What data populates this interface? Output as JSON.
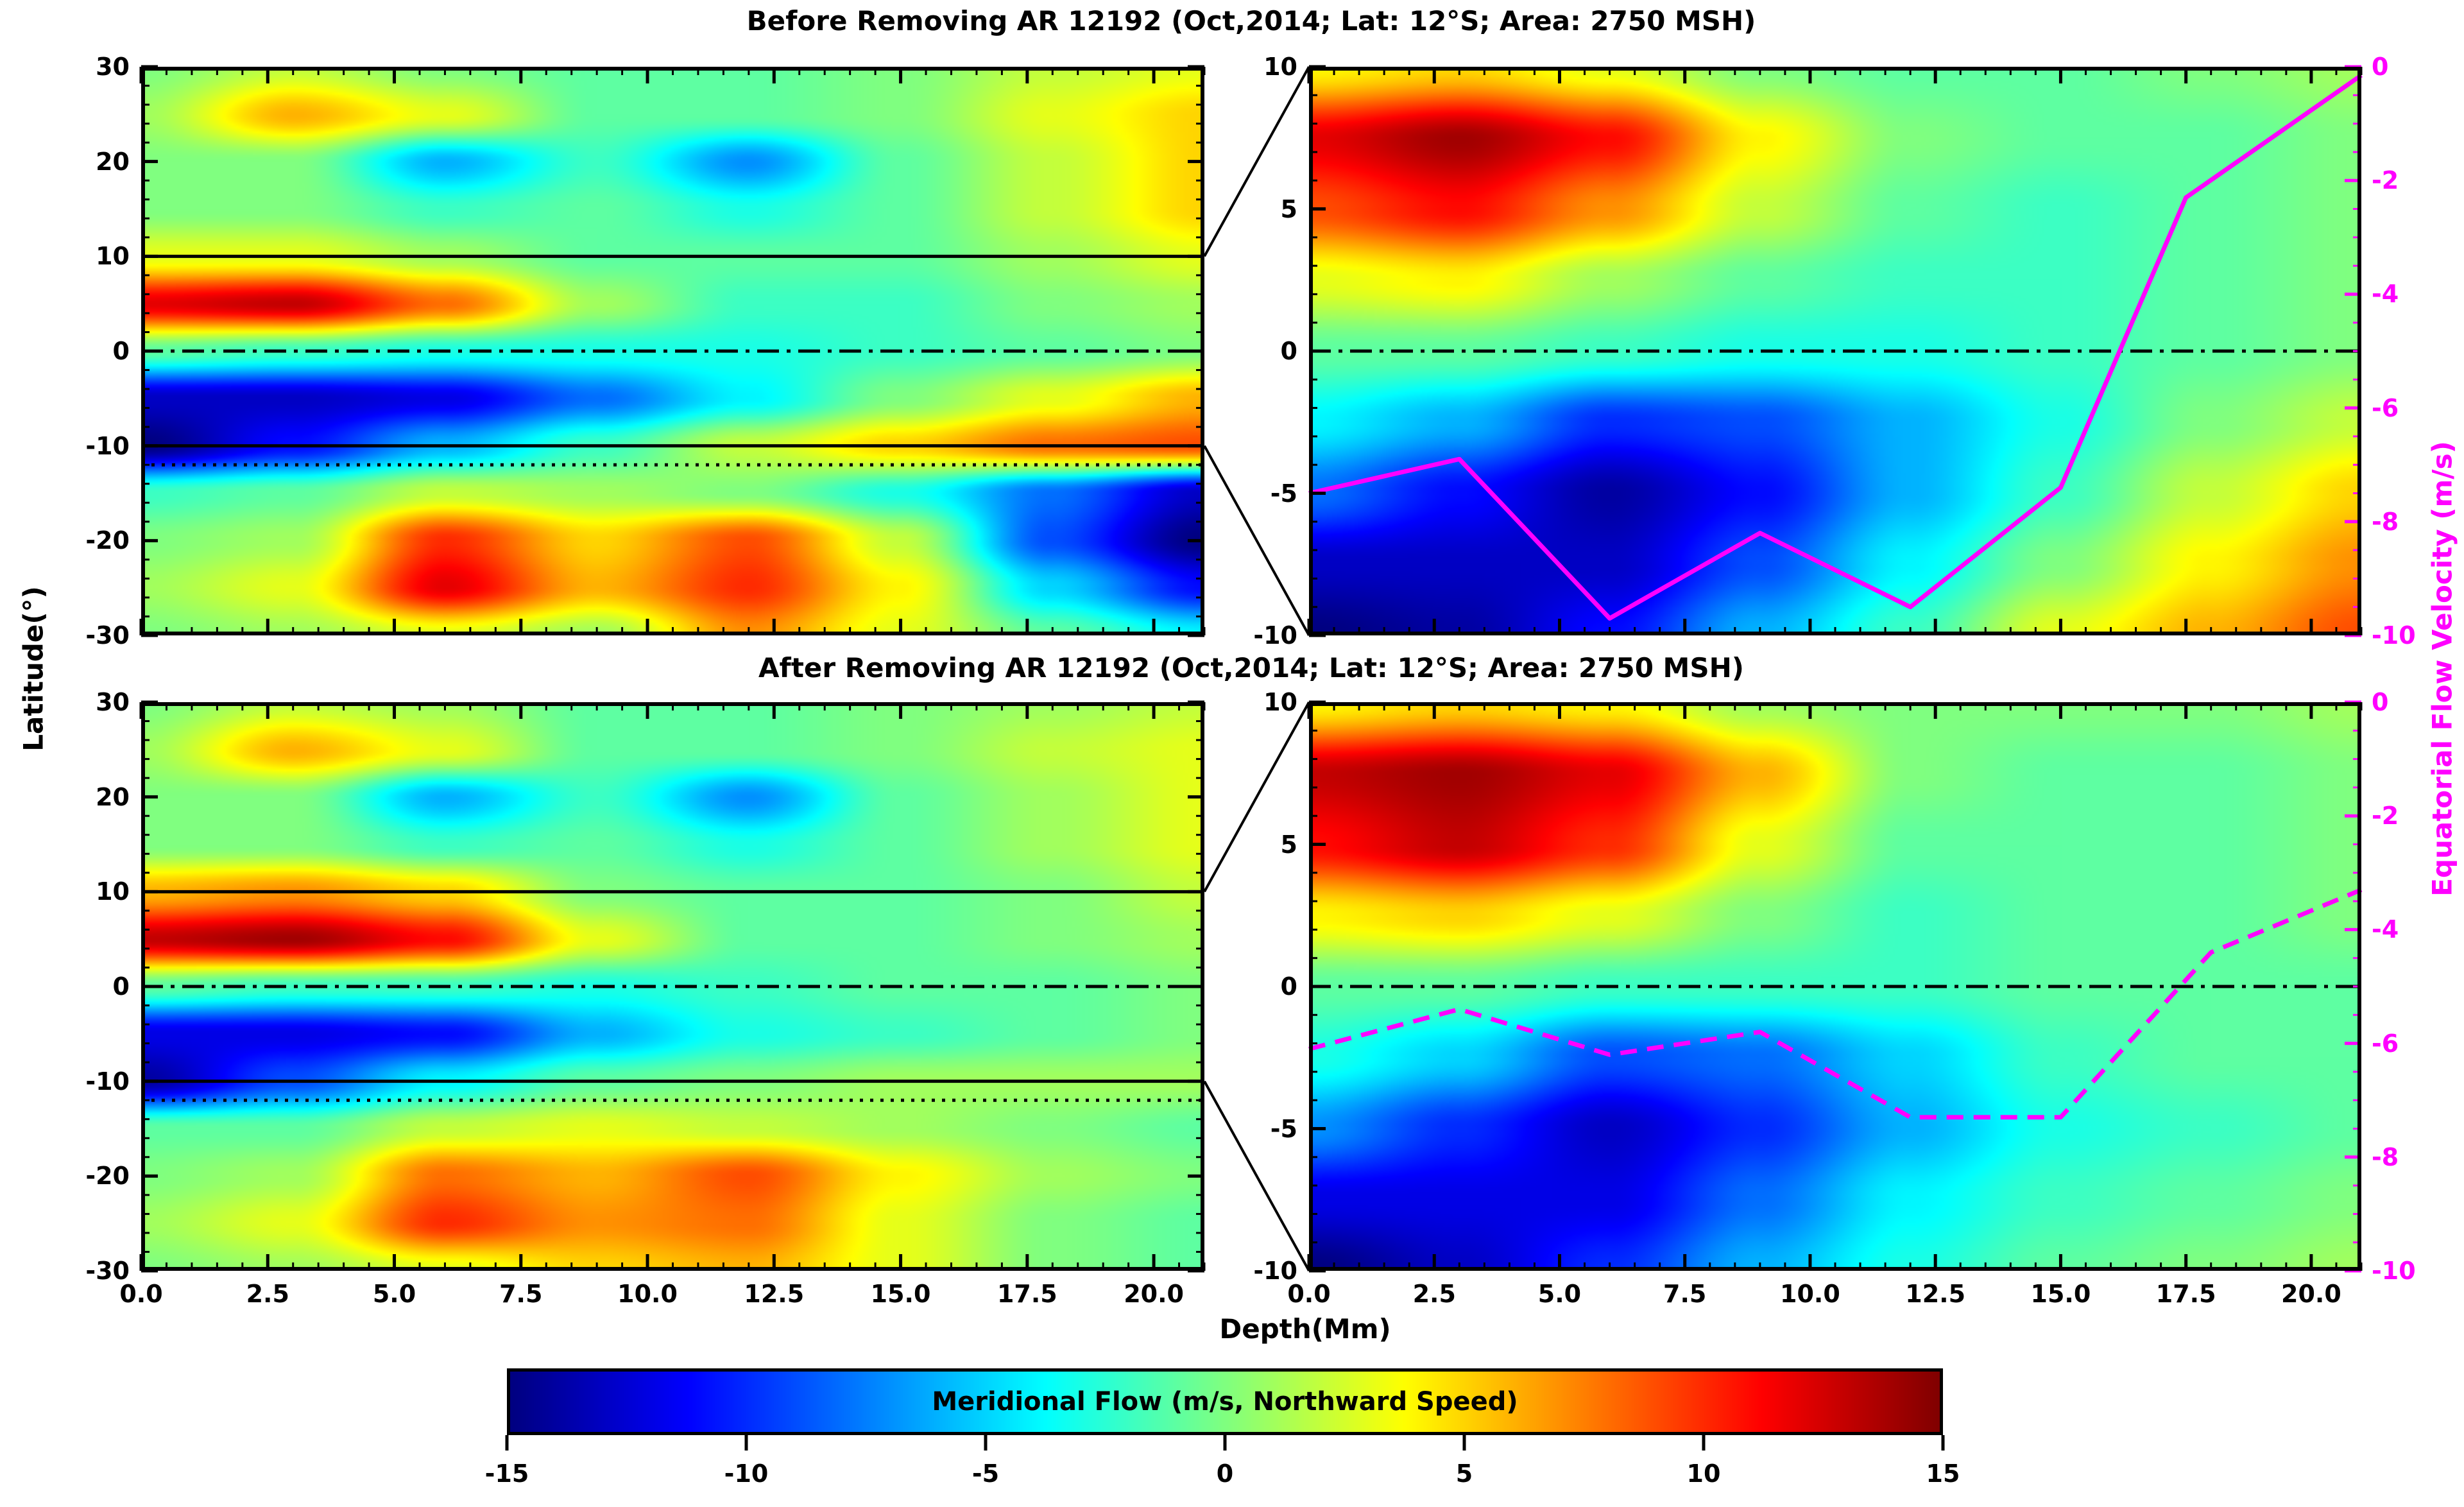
{
  "titles": {
    "before": "Before Removing AR 12192 (Oct,2014; Lat: 12°S; Area: 2750 MSH)",
    "after": "After Removing AR 12192 (Oct,2014; Lat: 12°S; Area: 2750 MSH)"
  },
  "axis_labels": {
    "y_left": "Latitude(°)",
    "x": "Depth(Mm)",
    "y_right": "Equatorial Flow Velocity (m/s)"
  },
  "colorbar": {
    "label": "Meridional Flow (m/s, Northward Speed)",
    "tick_labels": [
      "-15",
      "-10",
      "-5",
      "0",
      "5",
      "10",
      "15"
    ],
    "tick_values": [
      -15,
      -10,
      -5,
      0,
      5,
      10,
      15
    ],
    "range": [
      -15,
      15
    ],
    "colormap": "jet"
  },
  "colors": {
    "magenta": "#ff00ff",
    "frame": "#000000",
    "background": "#ffffff"
  },
  "axes": {
    "x": {
      "range": [
        0,
        21
      ],
      "major": [
        0,
        2.5,
        5,
        7.5,
        10,
        12.5,
        15,
        17.5,
        20
      ],
      "labels": [
        "0.0",
        "2.5",
        "5.0",
        "7.5",
        "10.0",
        "12.5",
        "15.0",
        "17.5",
        "20.0"
      ],
      "minor_step": 0.5
    },
    "lat_full": {
      "range": [
        -30,
        30
      ],
      "major": [
        30,
        20,
        10,
        0,
        -10,
        -20,
        -30
      ],
      "labels": [
        "30",
        "20",
        "10",
        "0",
        "-10",
        "-20",
        "-30"
      ],
      "minor_step": 2
    },
    "lat_zoom": {
      "range": [
        -10,
        10
      ],
      "major": [
        10,
        5,
        0,
        -5,
        -10
      ],
      "labels": [
        "10",
        "5",
        "0",
        "-5",
        "-10"
      ],
      "minor_step": 1
    },
    "vel_right": {
      "range": [
        -10,
        0
      ],
      "major": [
        0,
        -2,
        -4,
        -6,
        -8,
        -10
      ],
      "labels": [
        "0",
        "-2",
        "-4",
        "-6",
        "-8",
        "-10"
      ],
      "minor_step": 0.5
    }
  },
  "chart_data": [
    {
      "id": "before_full",
      "type": "heatmap",
      "panel": "top-left",
      "title": "Before Removing AR 12192 (Oct,2014; Lat: 12°S; Area: 2750 MSH)",
      "colormap": "jet",
      "value_range": [
        -15,
        15
      ],
      "x_depth_Mm": [
        0,
        3,
        6,
        9,
        12,
        15,
        18,
        21
      ],
      "y_latitude_deg": [
        30,
        25,
        20,
        15,
        10,
        5,
        0,
        -5,
        -10,
        -15,
        -20,
        -25,
        -30
      ],
      "values_m_per_s": [
        [
          0,
          2,
          0,
          -1,
          -1,
          0,
          2,
          3
        ],
        [
          1,
          6,
          3,
          -1,
          -1,
          0,
          3,
          5
        ],
        [
          0,
          0,
          -6,
          -2,
          -7,
          -1,
          2,
          5
        ],
        [
          0,
          0,
          -2,
          -1,
          -3,
          -1,
          2,
          5
        ],
        [
          3,
          3,
          1,
          -1,
          -1,
          -1,
          1,
          3
        ],
        [
          12,
          13,
          8,
          1,
          -2,
          -2,
          0,
          1
        ],
        [
          -1,
          -2,
          -3,
          -3,
          -3,
          -2,
          -1,
          0
        ],
        [
          -13,
          -13,
          -12,
          -8,
          -4,
          0,
          3,
          6
        ],
        [
          -15,
          -11,
          -6,
          -2,
          2,
          5,
          8,
          9
        ],
        [
          -2,
          -1,
          2,
          1,
          0,
          -3,
          -8,
          -13
        ],
        [
          0,
          1,
          10,
          5,
          9,
          2,
          -9,
          -15
        ],
        [
          1,
          3,
          12,
          6,
          10,
          4,
          -5,
          -11
        ],
        [
          0,
          1,
          3,
          1,
          7,
          3,
          -1,
          -4
        ]
      ],
      "overlays": {
        "solid_lat": [
          10,
          -10
        ],
        "dashdot_lat": [
          0
        ],
        "dotted_lat": [
          -12
        ]
      }
    },
    {
      "id": "before_zoom",
      "type": "heatmap+line",
      "panel": "top-right",
      "colormap": "jet",
      "value_range": [
        -15,
        15
      ],
      "x_depth_Mm": [
        0,
        3,
        6,
        9,
        12,
        15,
        18,
        21
      ],
      "y_latitude_deg": [
        10,
        7.5,
        5,
        2.5,
        0,
        -2.5,
        -5,
        -7.5,
        -10
      ],
      "values_m_per_s": [
        [
          4,
          5,
          3,
          0,
          -1,
          -1,
          0,
          1
        ],
        [
          12,
          14,
          11,
          4,
          0,
          -1,
          -1,
          0
        ],
        [
          9,
          11,
          7,
          2,
          -1,
          -2,
          -1,
          0
        ],
        [
          3,
          4,
          1,
          -1,
          -2,
          -2,
          -1,
          0
        ],
        [
          -1,
          -1,
          -2,
          -3,
          -3,
          -2,
          -1,
          0
        ],
        [
          -4,
          -6,
          -10,
          -9,
          -6,
          -3,
          0,
          2
        ],
        [
          -8,
          -11,
          -14,
          -11,
          -6,
          -2,
          2,
          5
        ],
        [
          -13,
          -13,
          -13,
          -9,
          -4,
          0,
          4,
          7
        ],
        [
          -15,
          -14,
          -11,
          -6,
          -2,
          3,
          6,
          9
        ]
      ],
      "overlays": {
        "dashdot_lat": [
          0
        ]
      },
      "line": {
        "name": "equatorial flow velocity (before)",
        "style": "solid",
        "color": "#ff00ff",
        "x_depth_Mm": [
          0,
          3,
          6,
          9,
          12,
          15,
          17.5,
          21
        ],
        "equatorial_flow_velocity_m_per_s": [
          -7.5,
          -6.9,
          -9.7,
          -8.2,
          -9.5,
          -7.4,
          -2.3,
          -0.15
        ]
      }
    },
    {
      "id": "after_full",
      "type": "heatmap",
      "panel": "bottom-left",
      "title": "After Removing AR 12192 (Oct,2014; Lat: 12°S; Area: 2750 MSH)",
      "colormap": "jet",
      "value_range": [
        -15,
        15
      ],
      "x_depth_Mm": [
        0,
        3,
        6,
        9,
        12,
        15,
        18,
        21
      ],
      "y_latitude_deg": [
        30,
        25,
        20,
        15,
        10,
        5,
        0,
        -5,
        -10,
        -15,
        -20,
        -25,
        -30
      ],
      "values_m_per_s": [
        [
          0,
          2,
          1,
          -1,
          -1,
          0,
          1,
          2
        ],
        [
          1,
          6,
          3,
          -1,
          -1,
          0,
          2,
          3
        ],
        [
          0,
          0,
          -6,
          -2,
          -7,
          -1,
          1,
          3
        ],
        [
          0,
          0,
          -2,
          -1,
          -3,
          -1,
          1,
          3
        ],
        [
          6,
          7,
          5,
          0,
          -1,
          -1,
          0,
          2
        ],
        [
          13,
          14,
          11,
          3,
          -1,
          -1,
          0,
          1
        ],
        [
          -1,
          -2,
          -2,
          -3,
          -2,
          -1,
          -1,
          0
        ],
        [
          -12,
          -12,
          -11,
          -6,
          -3,
          -2,
          -1,
          0
        ],
        [
          -14,
          -9,
          -4,
          -1,
          0,
          1,
          1,
          1
        ],
        [
          -1,
          -1,
          2,
          3,
          2,
          1,
          0,
          -1
        ],
        [
          0,
          1,
          8,
          6,
          9,
          4,
          1,
          0
        ],
        [
          1,
          3,
          10,
          7,
          8,
          3,
          0,
          -1
        ],
        [
          0,
          1,
          3,
          5,
          6,
          3,
          0,
          -1
        ]
      ],
      "overlays": {
        "solid_lat": [
          10,
          -10
        ],
        "dashdot_lat": [
          0
        ],
        "dotted_lat": [
          -12
        ]
      }
    },
    {
      "id": "after_zoom",
      "type": "heatmap+line",
      "panel": "bottom-right",
      "colormap": "jet",
      "value_range": [
        -15,
        15
      ],
      "x_depth_Mm": [
        0,
        3,
        6,
        9,
        12,
        15,
        18,
        21
      ],
      "y_latitude_deg": [
        10,
        7.5,
        5,
        2.5,
        0,
        -2.5,
        -5,
        -7.5,
        -10
      ],
      "values_m_per_s": [
        [
          4,
          5,
          4,
          1,
          0,
          0,
          0,
          1
        ],
        [
          13,
          14,
          12,
          6,
          0,
          -1,
          -1,
          0
        ],
        [
          11,
          13,
          10,
          3,
          -1,
          -1,
          -1,
          0
        ],
        [
          4,
          5,
          3,
          0,
          -2,
          -1,
          -1,
          0
        ],
        [
          -1,
          -1,
          -2,
          -2,
          -2,
          -1,
          -1,
          -1
        ],
        [
          -3,
          -5,
          -9,
          -8,
          -5,
          -2,
          -1,
          -1
        ],
        [
          -7,
          -10,
          -13,
          -10,
          -6,
          -3,
          -2,
          -1
        ],
        [
          -12,
          -12,
          -12,
          -8,
          -4,
          -2,
          -1,
          0
        ],
        [
          -15,
          -13,
          -10,
          -6,
          -3,
          -1,
          0,
          1
        ]
      ],
      "overlays": {
        "dashdot_lat": [
          0
        ]
      },
      "line": {
        "name": "equatorial flow velocity (after)",
        "style": "dashed",
        "color": "#ff00ff",
        "x_depth_Mm": [
          0,
          3,
          6,
          9,
          12,
          15,
          18,
          21
        ],
        "equatorial_flow_velocity_m_per_s": [
          -6.1,
          -5.4,
          -6.2,
          -5.8,
          -7.3,
          -7.3,
          -4.4,
          -3.3
        ]
      }
    }
  ]
}
